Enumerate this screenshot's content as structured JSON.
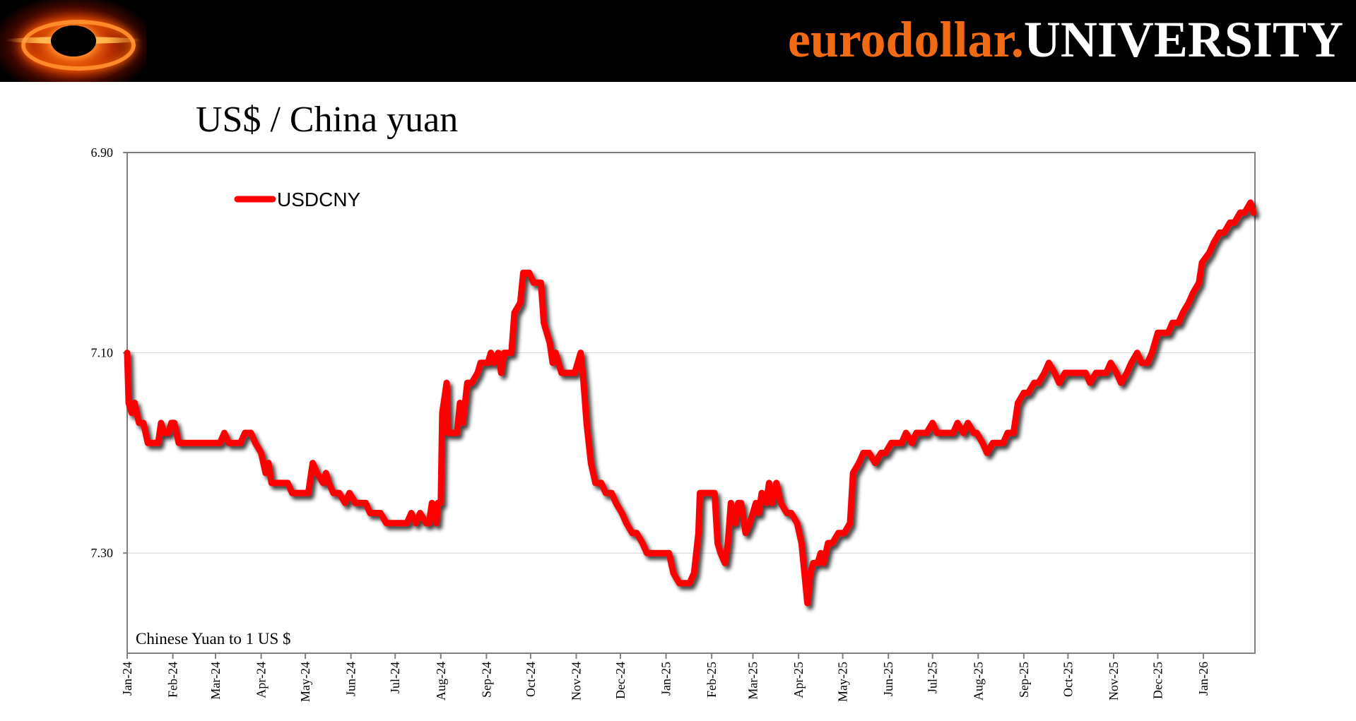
{
  "header": {
    "brand_part1": "eurodollar.",
    "brand_part2": "UNIVERSITY",
    "logo_icon": "black-hole-logo-icon",
    "colors": {
      "bar": "#000000",
      "brand_orange": "#f26a14",
      "brand_white": "#ffffff"
    }
  },
  "chart_data": {
    "type": "line",
    "title": "US$ / China yuan",
    "annotation": "Chinese Yuan to 1 US $",
    "y_axis": {
      "inverted": true,
      "ylim": [
        6.9,
        7.4
      ],
      "ticks": [
        6.9,
        7.1,
        7.3
      ],
      "tick_labels": [
        "6.90",
        "7.10",
        "7.30"
      ]
    },
    "x_axis": {
      "range": [
        "2024-01-01",
        "2026-02-05"
      ],
      "tick_labels": [
        "Jan-24",
        "Feb-24",
        "Mar-24",
        "Apr-24",
        "May-24",
        "Jun-24",
        "Jul-24",
        "Aug-24",
        "Sep-24",
        "Oct-24",
        "Nov-24",
        "Dec-24",
        "Jan-25",
        "Feb-25",
        "Mar-25",
        "Apr-25",
        "May-25",
        "Jun-25",
        "Jul-25",
        "Aug-25",
        "Sep-25",
        "Oct-25",
        "Nov-25",
        "Dec-25",
        "Jan-26"
      ],
      "tick_dates": [
        "2024-01-01",
        "2024-02-01",
        "2024-03-01",
        "2024-04-01",
        "2024-05-01",
        "2024-06-01",
        "2024-07-01",
        "2024-08-01",
        "2024-09-01",
        "2024-10-01",
        "2024-11-01",
        "2024-12-01",
        "2025-01-01",
        "2025-02-01",
        "2025-03-01",
        "2025-04-01",
        "2025-05-01",
        "2025-06-01",
        "2025-07-01",
        "2025-08-01",
        "2025-09-01",
        "2025-10-01",
        "2025-11-01",
        "2025-12-01",
        "2026-01-01"
      ]
    },
    "grid": "horizontal",
    "legend": {
      "position": "top-left",
      "entries": [
        "USDCNY"
      ]
    },
    "series": [
      {
        "name": "USDCNY",
        "color": "#ff0000",
        "points": [
          [
            "2024-01-01",
            7.1
          ],
          [
            "2024-01-02",
            7.15
          ],
          [
            "2024-01-04",
            7.16
          ],
          [
            "2024-01-06",
            7.15
          ],
          [
            "2024-01-09",
            7.17
          ],
          [
            "2024-01-12",
            7.17
          ],
          [
            "2024-01-15",
            7.19
          ],
          [
            "2024-01-18",
            7.19
          ],
          [
            "2024-01-22",
            7.19
          ],
          [
            "2024-01-24",
            7.17
          ],
          [
            "2024-01-26",
            7.18
          ],
          [
            "2024-01-29",
            7.18
          ],
          [
            "2024-01-31",
            7.17
          ],
          [
            "2024-02-02",
            7.17
          ],
          [
            "2024-02-05",
            7.19
          ],
          [
            "2024-02-08",
            7.19
          ],
          [
            "2024-02-15",
            7.19
          ],
          [
            "2024-02-22",
            7.19
          ],
          [
            "2024-02-26",
            7.19
          ],
          [
            "2024-02-29",
            7.19
          ],
          [
            "2024-03-04",
            7.19
          ],
          [
            "2024-03-07",
            7.18
          ],
          [
            "2024-03-10",
            7.19
          ],
          [
            "2024-03-14",
            7.19
          ],
          [
            "2024-03-18",
            7.19
          ],
          [
            "2024-03-21",
            7.18
          ],
          [
            "2024-03-25",
            7.18
          ],
          [
            "2024-03-28",
            7.19
          ],
          [
            "2024-04-01",
            7.2
          ],
          [
            "2024-04-04",
            7.22
          ],
          [
            "2024-04-06",
            7.21
          ],
          [
            "2024-04-08",
            7.23
          ],
          [
            "2024-04-12",
            7.23
          ],
          [
            "2024-04-16",
            7.23
          ],
          [
            "2024-04-19",
            7.23
          ],
          [
            "2024-04-22",
            7.24
          ],
          [
            "2024-04-26",
            7.24
          ],
          [
            "2024-04-30",
            7.24
          ],
          [
            "2024-05-03",
            7.24
          ],
          [
            "2024-05-06",
            7.21
          ],
          [
            "2024-05-09",
            7.22
          ],
          [
            "2024-05-13",
            7.23
          ],
          [
            "2024-05-15",
            7.22
          ],
          [
            "2024-05-17",
            7.23
          ],
          [
            "2024-05-20",
            7.24
          ],
          [
            "2024-05-24",
            7.24
          ],
          [
            "2024-05-28",
            7.25
          ],
          [
            "2024-05-31",
            7.24
          ],
          [
            "2024-06-04",
            7.25
          ],
          [
            "2024-06-07",
            7.25
          ],
          [
            "2024-06-11",
            7.25
          ],
          [
            "2024-06-14",
            7.26
          ],
          [
            "2024-06-18",
            7.26
          ],
          [
            "2024-06-21",
            7.26
          ],
          [
            "2024-06-25",
            7.27
          ],
          [
            "2024-06-28",
            7.27
          ],
          [
            "2024-07-02",
            7.27
          ],
          [
            "2024-07-05",
            7.27
          ],
          [
            "2024-07-09",
            7.27
          ],
          [
            "2024-07-12",
            7.26
          ],
          [
            "2024-07-15",
            7.27
          ],
          [
            "2024-07-18",
            7.26
          ],
          [
            "2024-07-22",
            7.27
          ],
          [
            "2024-07-24",
            7.27
          ],
          [
            "2024-07-26",
            7.25
          ],
          [
            "2024-07-29",
            7.27
          ],
          [
            "2024-07-30",
            7.25
          ],
          [
            "2024-08-01",
            7.25
          ],
          [
            "2024-08-02",
            7.16
          ],
          [
            "2024-08-05",
            7.13
          ],
          [
            "2024-08-06",
            7.18
          ],
          [
            "2024-08-08",
            7.18
          ],
          [
            "2024-08-12",
            7.18
          ],
          [
            "2024-08-14",
            7.15
          ],
          [
            "2024-08-16",
            7.17
          ],
          [
            "2024-08-19",
            7.13
          ],
          [
            "2024-08-22",
            7.13
          ],
          [
            "2024-08-26",
            7.12
          ],
          [
            "2024-08-28",
            7.11
          ],
          [
            "2024-09-02",
            7.11
          ],
          [
            "2024-09-04",
            7.1
          ],
          [
            "2024-09-06",
            7.11
          ],
          [
            "2024-09-09",
            7.1
          ],
          [
            "2024-09-11",
            7.12
          ],
          [
            "2024-09-13",
            7.1
          ],
          [
            "2024-09-18",
            7.1
          ],
          [
            "2024-09-20",
            7.06
          ],
          [
            "2024-09-24",
            7.05
          ],
          [
            "2024-09-26",
            7.02
          ],
          [
            "2024-09-30",
            7.02
          ],
          [
            "2024-10-03",
            7.03
          ],
          [
            "2024-10-08",
            7.03
          ],
          [
            "2024-10-10",
            7.07
          ],
          [
            "2024-10-14",
            7.09
          ],
          [
            "2024-10-16",
            7.11
          ],
          [
            "2024-10-18",
            7.1
          ],
          [
            "2024-10-22",
            7.12
          ],
          [
            "2024-10-25",
            7.12
          ],
          [
            "2024-10-29",
            7.12
          ],
          [
            "2024-10-31",
            7.12
          ],
          [
            "2024-11-04",
            7.1
          ],
          [
            "2024-11-06",
            7.13
          ],
          [
            "2024-11-08",
            7.17
          ],
          [
            "2024-11-11",
            7.21
          ],
          [
            "2024-11-14",
            7.23
          ],
          [
            "2024-11-18",
            7.23
          ],
          [
            "2024-11-21",
            7.24
          ],
          [
            "2024-11-25",
            7.24
          ],
          [
            "2024-11-28",
            7.25
          ],
          [
            "2024-12-02",
            7.26
          ],
          [
            "2024-12-05",
            7.27
          ],
          [
            "2024-12-09",
            7.28
          ],
          [
            "2024-12-12",
            7.28
          ],
          [
            "2024-12-16",
            7.29
          ],
          [
            "2024-12-19",
            7.3
          ],
          [
            "2024-12-23",
            7.3
          ],
          [
            "2024-12-27",
            7.3
          ],
          [
            "2024-12-31",
            7.3
          ],
          [
            "2025-01-03",
            7.3
          ],
          [
            "2025-01-06",
            7.32
          ],
          [
            "2025-01-10",
            7.33
          ],
          [
            "2025-01-14",
            7.33
          ],
          [
            "2025-01-17",
            7.33
          ],
          [
            "2025-01-20",
            7.32
          ],
          [
            "2025-01-23",
            7.28
          ],
          [
            "2025-01-24",
            7.24
          ],
          [
            "2025-01-27",
            7.24
          ],
          [
            "2025-01-30",
            7.24
          ],
          [
            "2025-02-03",
            7.24
          ],
          [
            "2025-02-05",
            7.29
          ],
          [
            "2025-02-07",
            7.3
          ],
          [
            "2025-02-10",
            7.31
          ],
          [
            "2025-02-12",
            7.29
          ],
          [
            "2025-02-14",
            7.25
          ],
          [
            "2025-02-17",
            7.27
          ],
          [
            "2025-02-19",
            7.25
          ],
          [
            "2025-02-21",
            7.25
          ],
          [
            "2025-02-24",
            7.28
          ],
          [
            "2025-02-27",
            7.27
          ],
          [
            "2025-03-03",
            7.25
          ],
          [
            "2025-03-05",
            7.26
          ],
          [
            "2025-03-07",
            7.24
          ],
          [
            "2025-03-10",
            7.25
          ],
          [
            "2025-03-12",
            7.23
          ],
          [
            "2025-03-14",
            7.25
          ],
          [
            "2025-03-17",
            7.23
          ],
          [
            "2025-03-20",
            7.25
          ],
          [
            "2025-03-24",
            7.26
          ],
          [
            "2025-03-27",
            7.26
          ],
          [
            "2025-03-31",
            7.27
          ],
          [
            "2025-04-03",
            7.29
          ],
          [
            "2025-04-07",
            7.35
          ],
          [
            "2025-04-09",
            7.32
          ],
          [
            "2025-04-11",
            7.31
          ],
          [
            "2025-04-14",
            7.31
          ],
          [
            "2025-04-16",
            7.3
          ],
          [
            "2025-04-18",
            7.31
          ],
          [
            "2025-04-21",
            7.29
          ],
          [
            "2025-04-24",
            7.29
          ],
          [
            "2025-04-28",
            7.28
          ],
          [
            "2025-05-02",
            7.28
          ],
          [
            "2025-05-06",
            7.27
          ],
          [
            "2025-05-08",
            7.22
          ],
          [
            "2025-05-12",
            7.21
          ],
          [
            "2025-05-15",
            7.2
          ],
          [
            "2025-05-19",
            7.2
          ],
          [
            "2025-05-23",
            7.21
          ],
          [
            "2025-05-27",
            7.2
          ],
          [
            "2025-05-30",
            7.2
          ],
          [
            "2025-06-03",
            7.19
          ],
          [
            "2025-06-06",
            7.19
          ],
          [
            "2025-06-10",
            7.19
          ],
          [
            "2025-06-13",
            7.18
          ],
          [
            "2025-06-17",
            7.19
          ],
          [
            "2025-06-20",
            7.18
          ],
          [
            "2025-06-24",
            7.18
          ],
          [
            "2025-06-27",
            7.18
          ],
          [
            "2025-07-01",
            7.17
          ],
          [
            "2025-07-04",
            7.18
          ],
          [
            "2025-07-08",
            7.18
          ],
          [
            "2025-07-11",
            7.18
          ],
          [
            "2025-07-15",
            7.18
          ],
          [
            "2025-07-18",
            7.17
          ],
          [
            "2025-07-22",
            7.18
          ],
          [
            "2025-07-25",
            7.17
          ],
          [
            "2025-07-29",
            7.18
          ],
          [
            "2025-07-31",
            7.18
          ],
          [
            "2025-08-04",
            7.19
          ],
          [
            "2025-08-07",
            7.2
          ],
          [
            "2025-08-11",
            7.19
          ],
          [
            "2025-08-14",
            7.19
          ],
          [
            "2025-08-18",
            7.19
          ],
          [
            "2025-08-21",
            7.18
          ],
          [
            "2025-08-25",
            7.18
          ],
          [
            "2025-08-28",
            7.15
          ],
          [
            "2025-09-01",
            7.14
          ],
          [
            "2025-09-04",
            7.14
          ],
          [
            "2025-09-08",
            7.13
          ],
          [
            "2025-09-11",
            7.13
          ],
          [
            "2025-09-15",
            7.12
          ],
          [
            "2025-09-18",
            7.11
          ],
          [
            "2025-09-22",
            7.12
          ],
          [
            "2025-09-25",
            7.13
          ],
          [
            "2025-09-29",
            7.12
          ],
          [
            "2025-10-02",
            7.12
          ],
          [
            "2025-10-06",
            7.12
          ],
          [
            "2025-10-09",
            7.12
          ],
          [
            "2025-10-13",
            7.12
          ],
          [
            "2025-10-16",
            7.13
          ],
          [
            "2025-10-20",
            7.12
          ],
          [
            "2025-10-23",
            7.12
          ],
          [
            "2025-10-27",
            7.12
          ],
          [
            "2025-10-30",
            7.11
          ],
          [
            "2025-11-03",
            7.12
          ],
          [
            "2025-11-06",
            7.13
          ],
          [
            "2025-11-10",
            7.12
          ],
          [
            "2025-11-13",
            7.11
          ],
          [
            "2025-11-17",
            7.1
          ],
          [
            "2025-11-20",
            7.11
          ],
          [
            "2025-11-24",
            7.11
          ],
          [
            "2025-11-27",
            7.1
          ],
          [
            "2025-12-01",
            7.08
          ],
          [
            "2025-12-04",
            7.08
          ],
          [
            "2025-12-08",
            7.08
          ],
          [
            "2025-12-11",
            7.07
          ],
          [
            "2025-12-15",
            7.07
          ],
          [
            "2025-12-18",
            7.06
          ],
          [
            "2025-12-22",
            7.05
          ],
          [
            "2025-12-25",
            7.04
          ],
          [
            "2025-12-29",
            7.03
          ],
          [
            "2025-12-31",
            7.01
          ],
          [
            "2026-01-05",
            7.0
          ],
          [
            "2026-01-08",
            6.99
          ],
          [
            "2026-01-12",
            6.98
          ],
          [
            "2026-01-15",
            6.98
          ],
          [
            "2026-01-19",
            6.97
          ],
          [
            "2026-01-22",
            6.97
          ],
          [
            "2026-01-26",
            6.96
          ],
          [
            "2026-01-29",
            6.96
          ],
          [
            "2026-02-02",
            6.95
          ],
          [
            "2026-02-04",
            6.96
          ]
        ]
      }
    ]
  }
}
